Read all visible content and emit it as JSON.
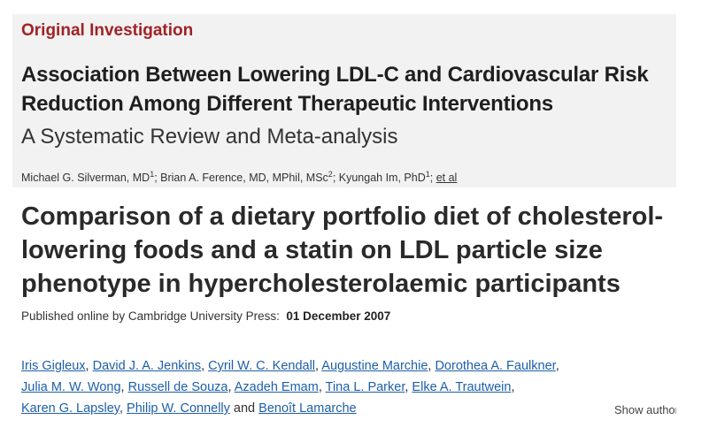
{
  "jama": {
    "kicker": "Original Investigation",
    "title": "Association Between Lowering LDL-C and Cardiovascular Risk Reduction Among Different Therapeutic Interventions",
    "subtitle": "A Systematic Review and Meta-analysis",
    "authors": [
      {
        "name": "Michael G. Silverman, MD",
        "sup": "1",
        "sep": "; "
      },
      {
        "name": "Brian A. Ference, MD, MPhil, MSc",
        "sup": "2",
        "sep": "; "
      },
      {
        "name": "Kyungah Im, PhD",
        "sup": "1",
        "sep": "; "
      }
    ],
    "et_al": "et al"
  },
  "cup": {
    "title": "Comparison of a dietary portfolio diet of cholesterol-lowering foods and a statin on LDL particle size phenotype in hypercholesterolaemic participants",
    "published_label": "Published online by Cambridge University Press:",
    "published_date": "01 December 2007",
    "authors_line1": [
      "Iris Gigleux",
      "David J. A. Jenkins",
      "Cyril W. C. Kendall",
      "Augustine Marchie",
      "Dorothea A. Faulkner"
    ],
    "authors_line2": [
      "Julia M. W. Wong",
      "Russell de Souza",
      "Azadeh Emam",
      "Tina L. Parker",
      "Elke A. Trautwein"
    ],
    "authors_line3": [
      "Karen G. Lapsley",
      "Philip W. Connelly"
    ],
    "and_word": "and",
    "last_author": "Benoît Lamarche",
    "show_authors": "Show authors"
  }
}
